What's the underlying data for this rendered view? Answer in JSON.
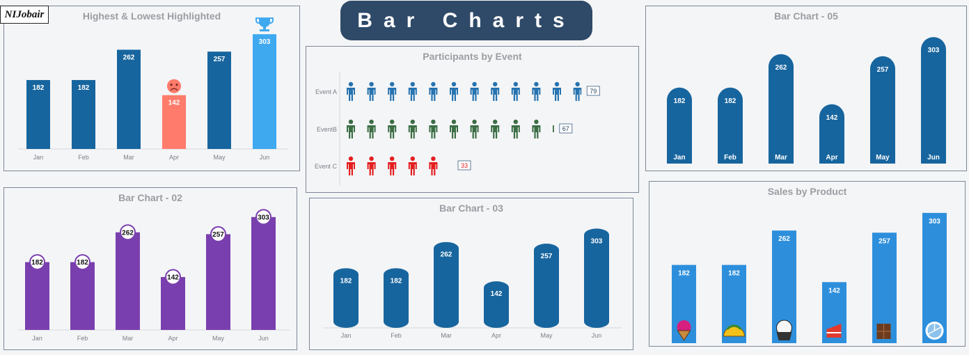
{
  "logo_text": "NIJobair",
  "main_title": "Bar Charts",
  "colors": {
    "dark_blue": "#17659e",
    "highest": "#3fa9f0",
    "lowest": "#ff7b6b",
    "purple": "#7a3fae",
    "product_blue": "#2d8fdc",
    "event_a": "#2673b0",
    "event_b": "#3c6e45",
    "event_c": "#e41f1f"
  },
  "chart_data": [
    {
      "type": "bar",
      "title": "Highest & Lowest Highlighted",
      "categories": [
        "Jan",
        "Feb",
        "Mar",
        "Apr",
        "May",
        "Jun"
      ],
      "values": [
        182,
        182,
        262,
        142,
        257,
        303
      ],
      "ylim": [
        0,
        340
      ],
      "highlight": {
        "highest": "Jun",
        "lowest": "Apr",
        "highest_icon": "trophy-icon",
        "lowest_icon": "sad-face-icon"
      }
    },
    {
      "type": "bar",
      "title": "Participants by Event",
      "orientation": "horizontal-pictogram",
      "categories": [
        "Event A",
        "EventB",
        "Event C"
      ],
      "values": [
        79,
        67,
        33
      ],
      "icon": "person-icon",
      "xlim": [
        0,
        90
      ]
    },
    {
      "type": "bar",
      "title": "Bar Chart - 05",
      "style": "rounded-top",
      "categories": [
        "Jan",
        "Feb",
        "Mar",
        "Apr",
        "May",
        "Jun"
      ],
      "values": [
        182,
        182,
        262,
        142,
        257,
        303
      ],
      "ylim": [
        0,
        340
      ]
    },
    {
      "type": "bar",
      "title": "Bar Chart - 02",
      "style": "circle-labels",
      "categories": [
        "Jan",
        "Feb",
        "Mar",
        "Apr",
        "May",
        "Jun"
      ],
      "values": [
        182,
        182,
        262,
        142,
        257,
        303
      ],
      "ylim": [
        0,
        340
      ]
    },
    {
      "type": "bar",
      "title": "Bar Chart - 03",
      "style": "cylinder",
      "categories": [
        "Jan",
        "Feb",
        "Mar",
        "Apr",
        "May",
        "Jun"
      ],
      "values": [
        182,
        182,
        262,
        142,
        257,
        303
      ],
      "ylim": [
        0,
        340
      ]
    },
    {
      "type": "bar",
      "title": "Sales by Product",
      "style": "product-icons",
      "categories": [
        "Ice Cream",
        "Taco",
        "Cupcake",
        "Cake",
        "Chocolate",
        "Pizza"
      ],
      "values": [
        182,
        182,
        262,
        142,
        257,
        303
      ],
      "icons": [
        "ice-cream-icon",
        "taco-icon",
        "cupcake-icon",
        "cake-icon",
        "chocolate-icon",
        "pizza-icon"
      ],
      "ylim": [
        0,
        340
      ]
    }
  ]
}
